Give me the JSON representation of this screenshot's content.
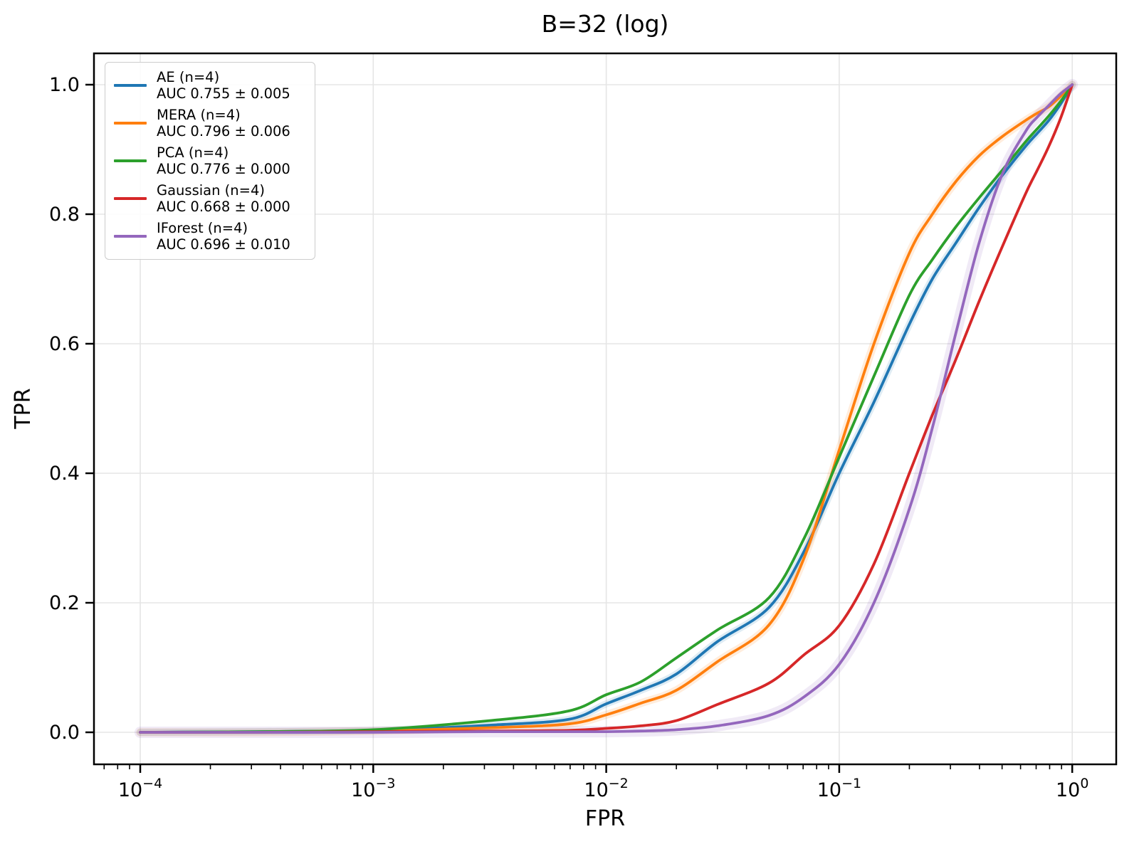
{
  "figure": {
    "title": "B=32 (log)",
    "xlabel": "FPR",
    "ylabel": "TPR"
  },
  "chart_data": {
    "type": "line",
    "title": "B=32 (log)",
    "xlabel": "FPR",
    "ylabel": "TPR",
    "xscale": "log",
    "yscale": "linear",
    "xlim": [
      6.33e-05,
      1.55
    ],
    "ylim": [
      -0.05,
      1.05
    ],
    "grid": true,
    "legend_position": "upper left",
    "grid_color": "#e5e5e5",
    "spine_color": "#000000",
    "x_tick_exponents": [
      -4,
      -3,
      -2,
      -1,
      0
    ],
    "y_ticks": [
      0.0,
      0.2,
      0.4,
      0.6,
      0.8,
      1.0
    ],
    "fpr": [
      0.0001,
      0.000316,
      0.001,
      0.00316,
      0.0069,
      0.01,
      0.0141,
      0.02,
      0.03,
      0.05,
      0.0708,
      0.1,
      0.141,
      0.2,
      0.251,
      0.316,
      0.398,
      0.501,
      0.631,
      0.708,
      0.794,
      0.891,
      1.0
    ],
    "series": [
      {
        "name": "AE",
        "n": 4,
        "auc": 0.755,
        "auc_std": 0.005,
        "legend_line1": "AE (n=4)",
        "legend_line2": "AUC 0.755 ± 0.005",
        "color": "#1f77b4",
        "tpr": [
          0,
          0.001,
          0.003,
          0.011,
          0.02,
          0.044,
          0.065,
          0.09,
          0.14,
          0.193,
          0.28,
          0.4,
          0.51,
          0.63,
          0.7,
          0.755,
          0.81,
          0.86,
          0.905,
          0.925,
          0.945,
          0.97,
          1.0
        ]
      },
      {
        "name": "MERA",
        "n": 4,
        "auc": 0.796,
        "auc_std": 0.006,
        "legend_line1": "MERA (n=4)",
        "legend_line2": "AUC 0.796 ± 0.006",
        "color": "#ff7f0e",
        "tpr": [
          0,
          0.0,
          0.002,
          0.007,
          0.013,
          0.027,
          0.045,
          0.065,
          0.109,
          0.166,
          0.27,
          0.436,
          0.6,
          0.74,
          0.8,
          0.85,
          0.89,
          0.92,
          0.945,
          0.956,
          0.966,
          0.982,
          1.0
        ]
      },
      {
        "name": "PCA",
        "n": 4,
        "auc": 0.776,
        "auc_std": 0.0,
        "legend_line1": "PCA (n=4)",
        "legend_line2": "AUC 0.776 ± 0.000",
        "color": "#2ca02c",
        "tpr": [
          0,
          0.001,
          0.004,
          0.018,
          0.033,
          0.058,
          0.078,
          0.115,
          0.158,
          0.208,
          0.3,
          0.425,
          0.55,
          0.675,
          0.73,
          0.78,
          0.825,
          0.868,
          0.912,
          0.932,
          0.952,
          0.974,
          1.0
        ]
      },
      {
        "name": "Gaussian",
        "n": 4,
        "auc": 0.668,
        "auc_std": 0.0,
        "legend_line1": "Gaussian (n=4)",
        "legend_line2": "AUC 0.668 ± 0.000",
        "color": "#d62728",
        "tpr": [
          0,
          0.0,
          0.001,
          0.002,
          0.003,
          0.006,
          0.01,
          0.018,
          0.043,
          0.076,
          0.12,
          0.165,
          0.26,
          0.4,
          0.49,
          0.575,
          0.665,
          0.75,
          0.832,
          0.868,
          0.905,
          0.948,
          1.0
        ]
      },
      {
        "name": "IForest",
        "n": 4,
        "auc": 0.696,
        "auc_std": 0.01,
        "legend_line1": "IForest (n=4)",
        "legend_line2": "AUC 0.696 ± 0.010",
        "color": "#9467bd",
        "tpr": [
          0,
          0.0,
          0.0,
          0.001,
          0.001,
          0.001,
          0.002,
          0.004,
          0.01,
          0.026,
          0.055,
          0.105,
          0.2,
          0.345,
          0.47,
          0.615,
          0.755,
          0.862,
          0.928,
          0.95,
          0.968,
          0.986,
          1.0
        ]
      }
    ]
  }
}
